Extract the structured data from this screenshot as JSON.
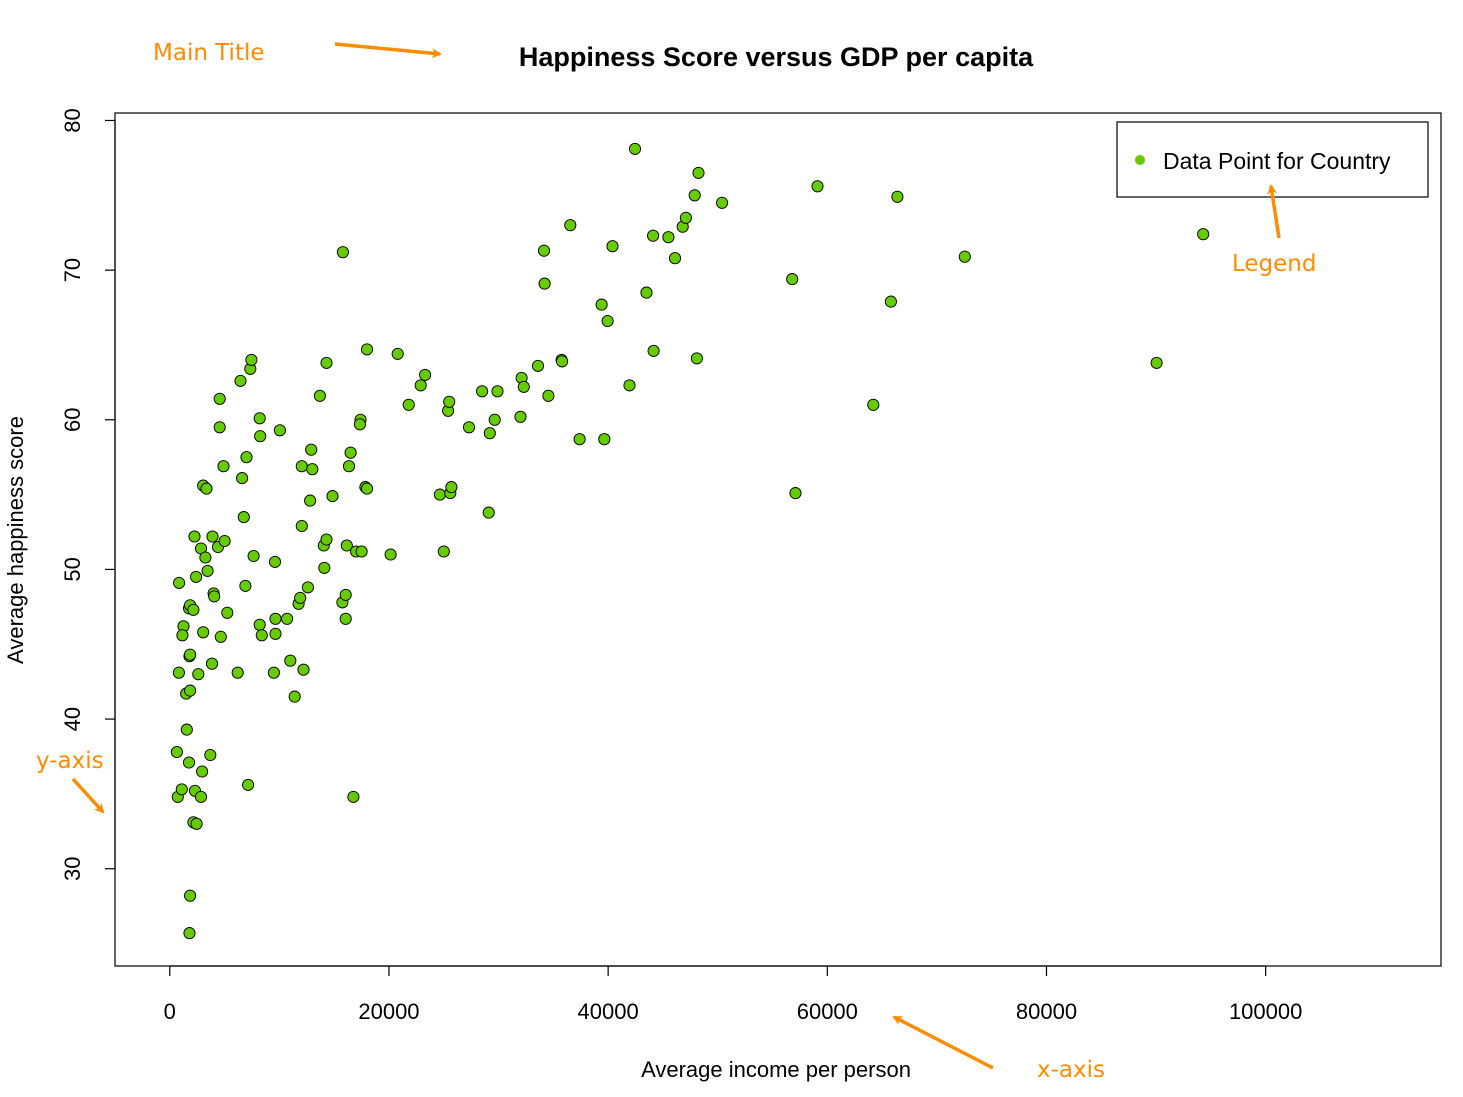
{
  "chart_data": {
    "type": "scatter",
    "title": "Happiness Score versus GDP per capita",
    "xlabel": "Average income per person",
    "ylabel": "Average happiness score",
    "xlim": [
      -5000,
      116000
    ],
    "ylim": [
      23.5,
      80.5
    ],
    "x_ticks": [
      0,
      20000,
      40000,
      60000,
      80000,
      100000
    ],
    "y_ticks": [
      30,
      40,
      50,
      60,
      70,
      80
    ],
    "grid": false,
    "legend": {
      "position": "top-right",
      "entries": [
        "Data Point for Country"
      ]
    },
    "point_color": "#66cc00",
    "point_edge_color": "#000000",
    "points": [
      [
        850,
        49.1
      ],
      [
        1250,
        46.2
      ],
      [
        1150,
        45.6
      ],
      [
        830,
        43.1
      ],
      [
        650,
        37.8
      ],
      [
        730,
        34.8
      ],
      [
        1100,
        35.3
      ],
      [
        1550,
        39.3
      ],
      [
        1500,
        41.7
      ],
      [
        1850,
        41.9
      ],
      [
        1800,
        44.2
      ],
      [
        1850,
        44.3
      ],
      [
        1750,
        47.4
      ],
      [
        1850,
        47.6
      ],
      [
        2150,
        47.3
      ],
      [
        1750,
        37.1
      ],
      [
        1850,
        28.2
      ],
      [
        1800,
        25.7
      ],
      [
        2150,
        33.1
      ],
      [
        2450,
        33.0
      ],
      [
        2300,
        35.2
      ],
      [
        2600,
        43.0
      ],
      [
        2400,
        49.5
      ],
      [
        2250,
        52.2
      ],
      [
        2850,
        51.4
      ],
      [
        3050,
        55.6
      ],
      [
        3350,
        55.4
      ],
      [
        3250,
        50.8
      ],
      [
        3450,
        49.9
      ],
      [
        3050,
        45.8
      ],
      [
        2950,
        36.5
      ],
      [
        2850,
        34.8
      ],
      [
        3700,
        37.6
      ],
      [
        3850,
        43.7
      ],
      [
        4000,
        48.4
      ],
      [
        4050,
        48.2
      ],
      [
        3900,
        52.2
      ],
      [
        4400,
        51.5
      ],
      [
        4650,
        45.5
      ],
      [
        5000,
        51.9
      ],
      [
        5250,
        47.1
      ],
      [
        4900,
        56.9
      ],
      [
        4550,
        59.5
      ],
      [
        4550,
        61.4
      ],
      [
        6200,
        43.1
      ],
      [
        6600,
        56.1
      ],
      [
        6450,
        62.6
      ],
      [
        6750,
        53.5
      ],
      [
        7000,
        57.5
      ],
      [
        6900,
        48.9
      ],
      [
        7150,
        35.6
      ],
      [
        7350,
        63.4
      ],
      [
        7450,
        64.0
      ],
      [
        7650,
        50.9
      ],
      [
        8200,
        60.1
      ],
      [
        8250,
        58.9
      ],
      [
        8200,
        46.3
      ],
      [
        8400,
        45.6
      ],
      [
        9500,
        43.1
      ],
      [
        9600,
        50.5
      ],
      [
        9650,
        45.7
      ],
      [
        9650,
        46.7
      ],
      [
        10050,
        59.3
      ],
      [
        10700,
        46.7
      ],
      [
        11000,
        43.9
      ],
      [
        11400,
        41.5
      ],
      [
        11750,
        47.7
      ],
      [
        11900,
        48.1
      ],
      [
        12050,
        56.9
      ],
      [
        12050,
        52.9
      ],
      [
        12200,
        43.3
      ],
      [
        12600,
        48.8
      ],
      [
        12800,
        54.6
      ],
      [
        13000,
        56.7
      ],
      [
        12900,
        58.0
      ],
      [
        13700,
        61.6
      ],
      [
        14050,
        51.6
      ],
      [
        14100,
        50.1
      ],
      [
        14300,
        52.0
      ],
      [
        14300,
        63.8
      ],
      [
        14850,
        54.9
      ],
      [
        15800,
        71.2
      ],
      [
        15750,
        47.8
      ],
      [
        16050,
        48.3
      ],
      [
        16050,
        46.7
      ],
      [
        16150,
        51.6
      ],
      [
        16350,
        56.9
      ],
      [
        16500,
        57.8
      ],
      [
        16750,
        34.8
      ],
      [
        17000,
        51.2
      ],
      [
        17400,
        60.0
      ],
      [
        17350,
        59.7
      ],
      [
        17500,
        51.2
      ],
      [
        17850,
        55.5
      ],
      [
        18000,
        55.4
      ],
      [
        18000,
        64.7
      ],
      [
        20150,
        51.0
      ],
      [
        20800,
        64.4
      ],
      [
        21800,
        61.0
      ],
      [
        22900,
        62.3
      ],
      [
        23300,
        63.0
      ],
      [
        24650,
        55.0
      ],
      [
        25000,
        51.2
      ],
      [
        25400,
        60.6
      ],
      [
        25500,
        61.2
      ],
      [
        25600,
        55.1
      ],
      [
        25700,
        55.5
      ],
      [
        27300,
        59.5
      ],
      [
        28500,
        61.9
      ],
      [
        29100,
        53.8
      ],
      [
        29200,
        59.1
      ],
      [
        29650,
        60.0
      ],
      [
        29900,
        61.9
      ],
      [
        32000,
        60.2
      ],
      [
        32100,
        62.8
      ],
      [
        32300,
        62.2
      ],
      [
        33600,
        63.6
      ],
      [
        34150,
        71.3
      ],
      [
        34200,
        69.1
      ],
      [
        34550,
        61.6
      ],
      [
        35750,
        64.0
      ],
      [
        35800,
        63.9
      ],
      [
        36550,
        73.0
      ],
      [
        37400,
        58.7
      ],
      [
        39400,
        67.7
      ],
      [
        39650,
        58.7
      ],
      [
        39950,
        66.6
      ],
      [
        40400,
        71.6
      ],
      [
        41950,
        62.3
      ],
      [
        42450,
        78.1
      ],
      [
        43500,
        68.5
      ],
      [
        44100,
        72.3
      ],
      [
        44150,
        64.6
      ],
      [
        45500,
        72.2
      ],
      [
        46100,
        70.8
      ],
      [
        46800,
        72.9
      ],
      [
        47100,
        73.5
      ],
      [
        47900,
        75.0
      ],
      [
        48250,
        76.5
      ],
      [
        48100,
        64.1
      ],
      [
        50400,
        74.5
      ],
      [
        56800,
        69.4
      ],
      [
        57100,
        55.1
      ],
      [
        59100,
        75.6
      ],
      [
        64200,
        61.0
      ],
      [
        65800,
        67.9
      ],
      [
        66400,
        74.9
      ],
      [
        72550,
        70.9
      ],
      [
        90050,
        63.8
      ],
      [
        94300,
        72.4
      ]
    ]
  },
  "annotations": {
    "main_title": "Main Title",
    "legend": "Legend",
    "y_axis": "y-axis",
    "x_axis": "x-axis",
    "color": "#ff8c00"
  }
}
